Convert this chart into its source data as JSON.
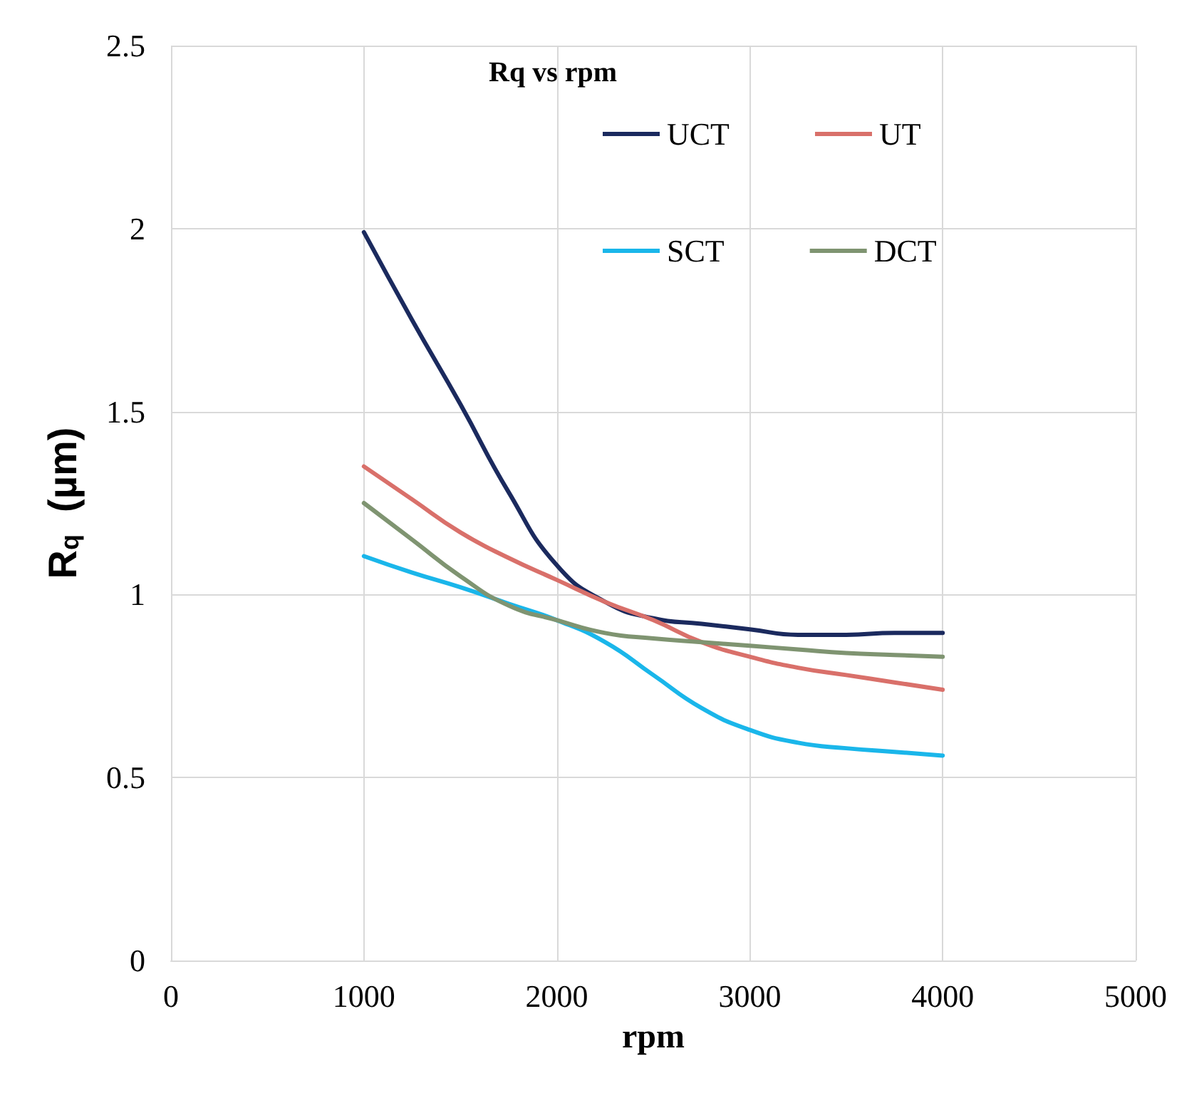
{
  "chart_data": {
    "type": "line",
    "title": "Rq vs rpm",
    "xlabel": "rpm",
    "ylabel": "R$_{q}$  (µm)",
    "x": [
      1000,
      1250,
      1500,
      1750,
      2000,
      2250,
      2500,
      2750,
      3000,
      3250,
      3500,
      3750,
      4000
    ],
    "series": [
      {
        "name": "UCT",
        "color": "#1b2a5e",
        "values": [
          1.99,
          1.75,
          1.52,
          1.28,
          1.08,
          0.98,
          0.935,
          0.92,
          0.905,
          0.89,
          0.89,
          0.895,
          0.895
        ]
      },
      {
        "name": "UT",
        "color": "#d9706a",
        "values": [
          1.35,
          1.26,
          1.17,
          1.1,
          1.04,
          0.98,
          0.93,
          0.87,
          0.83,
          0.8,
          0.78,
          0.76,
          0.74
        ]
      },
      {
        "name": "SCT",
        "color": "#1ab6ea",
        "values": [
          1.105,
          1.06,
          1.02,
          0.975,
          0.93,
          0.87,
          0.78,
          0.69,
          0.63,
          0.595,
          0.58,
          0.57,
          0.56
        ]
      },
      {
        "name": "DCT",
        "color": "#7f9471",
        "values": [
          1.25,
          1.15,
          1.05,
          0.97,
          0.93,
          0.895,
          0.88,
          0.87,
          0.86,
          0.85,
          0.84,
          0.835,
          0.83
        ]
      }
    ],
    "xlim": [
      0,
      5000
    ],
    "xticks": [
      0,
      1000,
      2000,
      3000,
      4000,
      5000
    ],
    "ylim": [
      0,
      2.5
    ],
    "yticks": [
      0,
      0.5,
      1,
      1.5,
      2,
      2.5
    ],
    "grid": true,
    "legend": "top",
    "marker": "none",
    "line_style": "solid"
  }
}
